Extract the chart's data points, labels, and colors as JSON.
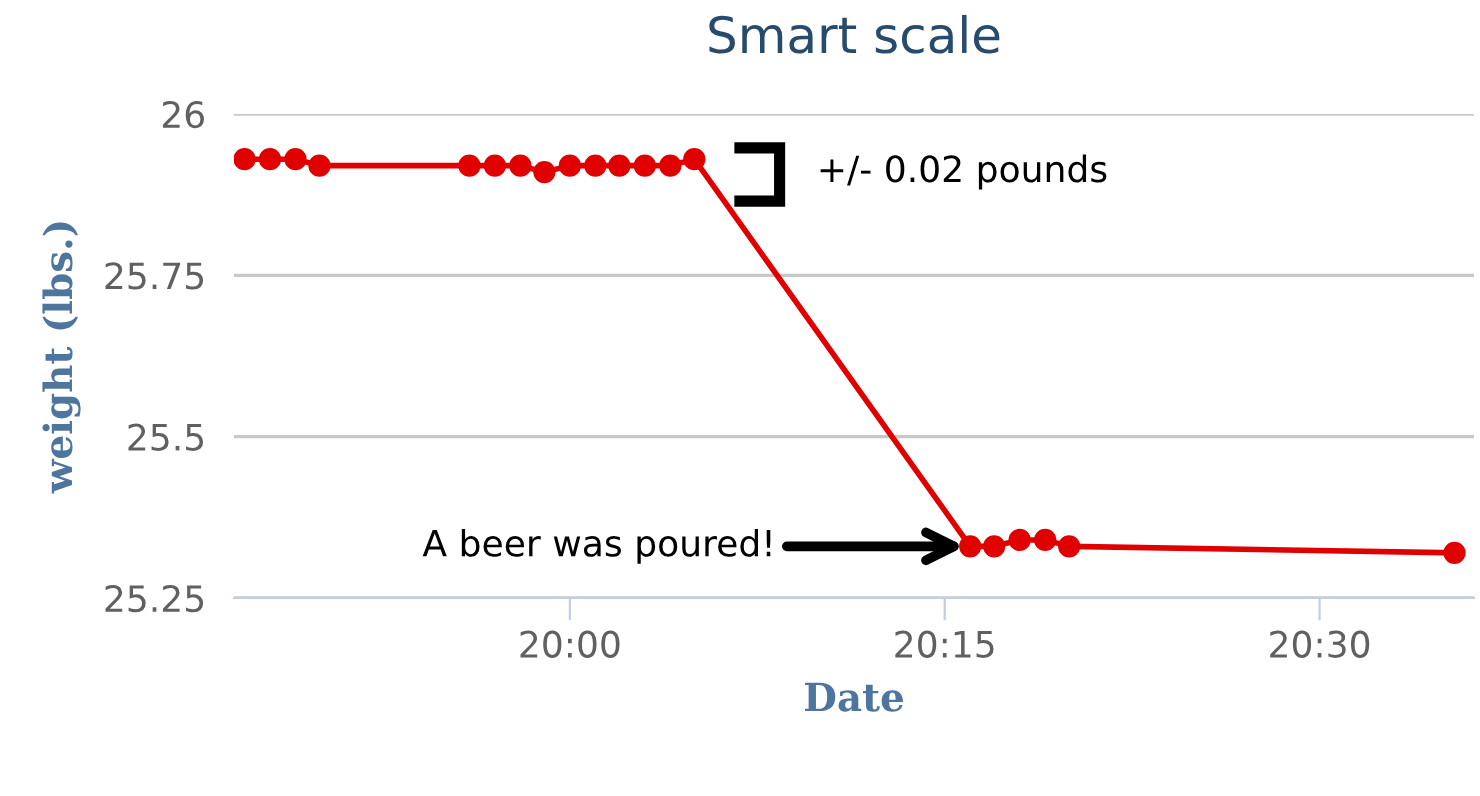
{
  "chart_data": {
    "type": "line",
    "title": "Smart scale",
    "xlabel": "Date",
    "ylabel": "weight (lbs.)",
    "x": [
      19.783,
      19.8,
      19.817,
      19.833,
      19.933,
      19.95,
      19.967,
      19.983,
      20.0,
      20.017,
      20.033,
      20.05,
      20.067,
      20.083,
      20.267,
      20.283,
      20.3,
      20.317,
      20.333,
      20.59
    ],
    "series": [
      {
        "color": "#e00000",
        "values": [
          25.93,
          25.93,
          25.93,
          25.92,
          25.92,
          25.92,
          25.92,
          25.91,
          25.92,
          25.92,
          25.92,
          25.92,
          25.92,
          25.93,
          25.33,
          25.33,
          25.34,
          25.34,
          25.33,
          25.32
        ]
      }
    ],
    "xlim": [
      19.776,
      20.603
    ],
    "xticks": [
      {
        "value": 20.0,
        "label": "20:00"
      },
      {
        "value": 20.25,
        "label": "20:15"
      },
      {
        "value": 20.5,
        "label": "20:30"
      }
    ],
    "ylim": [
      25.25,
      26
    ],
    "yticks": [
      25.25,
      25.5,
      25.75,
      26
    ],
    "grid": "y",
    "marker": "circle",
    "line_style": "solid",
    "legend": false,
    "annotations": [
      "+/- 0.02 pounds",
      {
        "text": "A beer was poured!",
        "x": 20.267,
        "y": 25.33
      }
    ]
  }
}
